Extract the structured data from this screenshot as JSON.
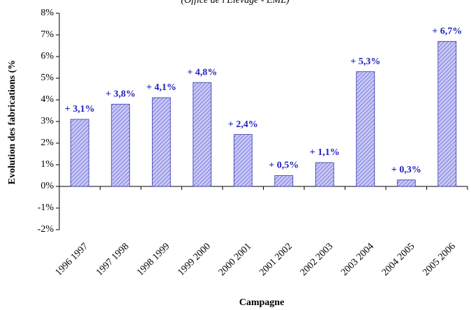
{
  "chart_data": {
    "type": "bar",
    "subtitle": "(Office de l'Elevage - EML)",
    "y_label": "Evolution des fabrications (%",
    "x_label": "Campagne",
    "categories": [
      "1996 1997",
      "1997 1998",
      "1998 1999",
      "1999 2000",
      "2000 2001",
      "2001 2002",
      "2002 2003",
      "2003 2004",
      "2004 2005",
      "2005 2006"
    ],
    "values": [
      3.1,
      3.8,
      4.1,
      4.8,
      2.4,
      0.5,
      1.1,
      5.3,
      0.3,
      6.7
    ],
    "value_labels": [
      "+ 3,1%",
      "+ 3,8%",
      "+ 4,1%",
      "+ 4,8%",
      "+ 2,4%",
      "+ 0,5%",
      "+ 1,1%",
      "+ 5,3%",
      "+ 0,3%",
      "+ 6,7%"
    ],
    "color": "#9999ee",
    "ylim": [
      -2,
      8
    ],
    "yticks": [
      {
        "value": -2,
        "label": "-2%"
      },
      {
        "value": -1,
        "label": "-1%"
      },
      {
        "value": 0,
        "label": "0%"
      },
      {
        "value": 1,
        "label": "1%"
      },
      {
        "value": 2,
        "label": "2%"
      },
      {
        "value": 3,
        "label": "3%"
      },
      {
        "value": 4,
        "label": "4%"
      },
      {
        "value": 5,
        "label": "5%"
      },
      {
        "value": 6,
        "label": "6%"
      },
      {
        "value": 7,
        "label": "7%"
      },
      {
        "value": 8,
        "label": "8%"
      }
    ]
  }
}
